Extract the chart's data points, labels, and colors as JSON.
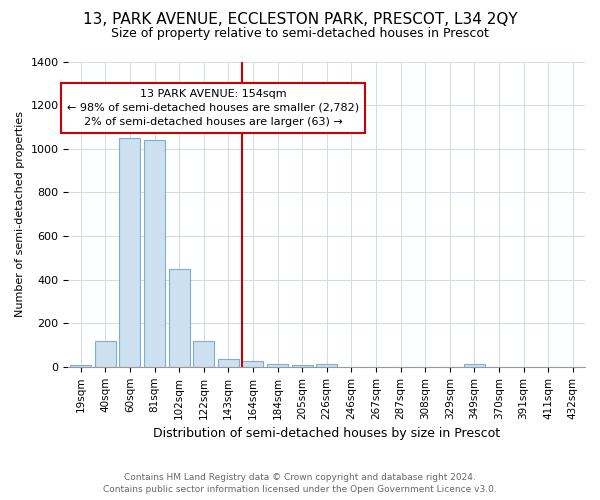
{
  "title": "13, PARK AVENUE, ECCLESTON PARK, PRESCOT, L34 2QY",
  "subtitle": "Size of property relative to semi-detached houses in Prescot",
  "xlabel": "Distribution of semi-detached houses by size in Prescot",
  "ylabel": "Number of semi-detached properties",
  "footnote1": "Contains HM Land Registry data © Crown copyright and database right 2024.",
  "footnote2": "Contains public sector information licensed under the Open Government Licence v3.0.",
  "bar_labels": [
    "19sqm",
    "40sqm",
    "60sqm",
    "81sqm",
    "102sqm",
    "122sqm",
    "143sqm",
    "164sqm",
    "184sqm",
    "205sqm",
    "226sqm",
    "246sqm",
    "267sqm",
    "287sqm",
    "308sqm",
    "329sqm",
    "349sqm",
    "370sqm",
    "391sqm",
    "411sqm",
    "432sqm"
  ],
  "bar_values": [
    10,
    120,
    1050,
    1040,
    450,
    120,
    38,
    25,
    15,
    10,
    15,
    0,
    0,
    0,
    0,
    0,
    15,
    0,
    0,
    0,
    0
  ],
  "bar_color": "#cce0f0",
  "bar_edge_color": "#7ab0d4",
  "grid_color": "#d0dce8",
  "background_color": "#ffffff",
  "red_line_index": 7,
  "annotation_text_line1": "13 PARK AVENUE: 154sqm",
  "annotation_text_line2": "← 98% of semi-detached houses are smaller (2,782)",
  "annotation_text_line3": "2% of semi-detached houses are larger (63) →",
  "annotation_box_color": "white",
  "annotation_box_edge": "#cc0000",
  "ylim": [
    0,
    1400
  ],
  "yticks": [
    0,
    200,
    400,
    600,
    800,
    1000,
    1200,
    1400
  ],
  "title_fontsize": 11,
  "subtitle_fontsize": 9,
  "ylabel_fontsize": 8,
  "xlabel_fontsize": 9,
  "tick_fontsize": 8,
  "annot_fontsize": 8
}
